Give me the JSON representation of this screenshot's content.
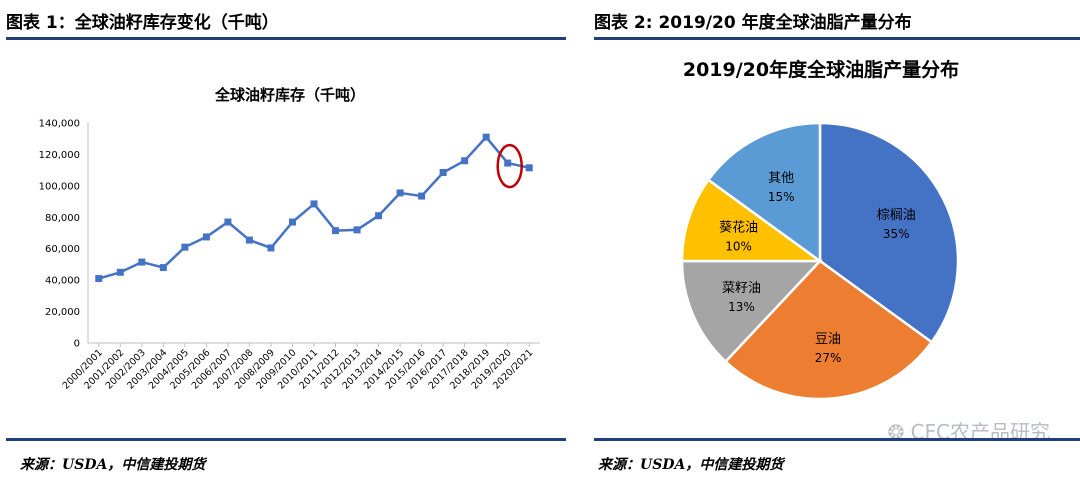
{
  "left": {
    "figure_title": "图表 1：全球油籽库存变化（千吨）",
    "source": "来源：USDA，中信建投期货",
    "chart_data": {
      "type": "line",
      "title": "全球油籽库存（千吨）",
      "xlabel": "",
      "ylabel": "",
      "ylim": [
        0,
        140000
      ],
      "yticks": [
        0,
        20000,
        40000,
        60000,
        80000,
        100000,
        120000,
        140000
      ],
      "ytick_labels": [
        "0",
        "20,000",
        "40,000",
        "60,000",
        "80,000",
        "100,000",
        "120,000",
        "140,000"
      ],
      "grid": false,
      "categories": [
        "2000/2001",
        "2001/2002",
        "2002/2003",
        "2003/2004",
        "2004/2005",
        "2005/2006",
        "2006/2007",
        "2007/2008",
        "2008/2009",
        "2009/2010",
        "2010/2011",
        "2011/2012",
        "2012/2013",
        "2013/2014",
        "2014/2015",
        "2015/2016",
        "2016/2017",
        "2017/2018",
        "2018/2019",
        "2019/2020",
        "2020/2021"
      ],
      "series": [
        {
          "values": [
            41000,
            45000,
            51500,
            48000,
            61000,
            67500,
            77000,
            65500,
            60500,
            77000,
            88500,
            71500,
            72000,
            81000,
            95500,
            93500,
            108500,
            116000,
            131000,
            114500,
            111500
          ],
          "color": "#4472c4"
        }
      ],
      "annotations": [
        {
          "type": "circle",
          "category": "2019/2020",
          "color": "#c00000"
        }
      ]
    }
  },
  "right": {
    "figure_title": "图表 2: 2019/20 年度全球油脂产量分布",
    "source": "来源：USDA，中信建投期货",
    "watermark": "CFC农产品研究",
    "chart_data": {
      "type": "pie",
      "title": "2019/20年度全球油脂产量分布",
      "slices": [
        {
          "label": "棕榈油",
          "value": 35,
          "value_label": "35%",
          "color": "#4472c4"
        },
        {
          "label": "豆油",
          "value": 27,
          "value_label": "27%",
          "color": "#ed7d31"
        },
        {
          "label": "菜籽油",
          "value": 13,
          "value_label": "13%",
          "color": "#a5a5a5"
        },
        {
          "label": "葵花油",
          "value": 10,
          "value_label": "10%",
          "color": "#ffc000"
        },
        {
          "label": "其他",
          "value": 15,
          "value_label": "15%",
          "color": "#5b9bd5"
        }
      ]
    }
  }
}
